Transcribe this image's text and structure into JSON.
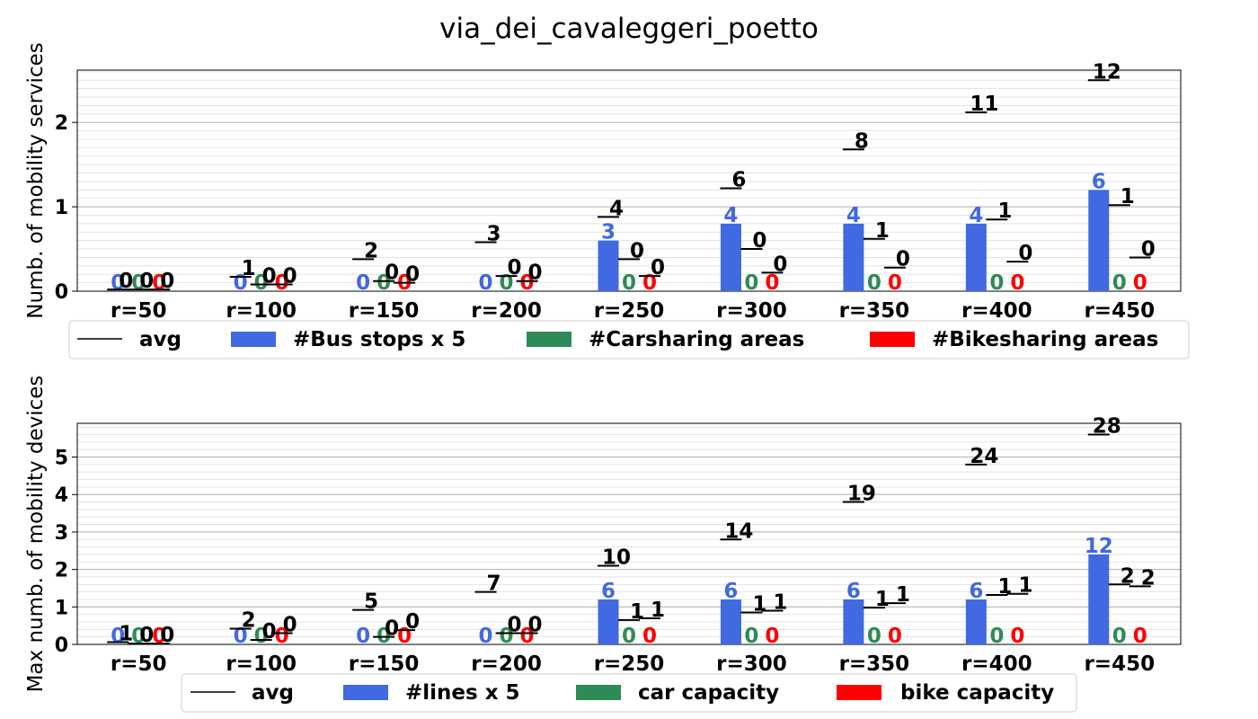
{
  "figure": {
    "title": "via_dei_cavaleggeri_poetto"
  },
  "colors": {
    "bus": "#4169e1",
    "car": "#2e8b57",
    "bike": "#ff0000",
    "avg": "#000000"
  },
  "chart_data": [
    {
      "type": "bar",
      "ylabel": "Numb. of mobility services",
      "ylim": [
        0,
        2.62
      ],
      "yticks": [
        0,
        1,
        2
      ],
      "grid": true,
      "legend_placement": "below",
      "categories": [
        "r=50",
        "r=100",
        "r=150",
        "r=200",
        "r=250",
        "r=300",
        "r=350",
        "r=400",
        "r=450"
      ],
      "series": [
        {
          "name": "#Bus stops x 5",
          "values": [
            0,
            0,
            0,
            0,
            0.6,
            0.8,
            0.8,
            0.8,
            1.2
          ],
          "labels": [
            "0",
            "0",
            "0",
            "0",
            "3",
            "4",
            "4",
            "4",
            "6"
          ]
        },
        {
          "name": "#Carsharing areas",
          "values": [
            0,
            0,
            0,
            0,
            0,
            0,
            0,
            0,
            0
          ],
          "labels": [
            "0",
            "0",
            "0",
            "0",
            "0",
            "0",
            "0",
            "0",
            "0"
          ]
        },
        {
          "name": "#Bikesharing areas",
          "values": [
            0,
            0,
            0,
            0,
            0,
            0,
            0,
            0,
            0
          ],
          "labels": [
            "0",
            "0",
            "0",
            "0",
            "0",
            "0",
            "0",
            "0",
            "0"
          ]
        }
      ],
      "averages": [
        {
          "name": "avg",
          "values": [
            0.02,
            0.17,
            0.38,
            0.58,
            0.88,
            1.22,
            1.68,
            2.12,
            2.5
          ],
          "labels": [
            "0",
            "1",
            "2",
            "3",
            "4",
            "6",
            "8",
            "11",
            "12"
          ]
        },
        {
          "name": "avg",
          "values": [
            0.02,
            0.08,
            0.12,
            0.18,
            0.38,
            0.5,
            0.62,
            0.85,
            1.02
          ],
          "labels": [
            "0",
            "0",
            "0",
            "0",
            "0",
            "0",
            "1",
            "1",
            "1"
          ]
        },
        {
          "name": "avg",
          "values": [
            0.02,
            0.08,
            0.1,
            0.12,
            0.18,
            0.22,
            0.28,
            0.35,
            0.4
          ],
          "labels": [
            "0",
            "0",
            "0",
            "0",
            "0",
            "0",
            "0",
            "0",
            "0"
          ]
        }
      ],
      "legend": [
        "avg",
        "#Bus stops x 5",
        "#Carsharing areas",
        "#Bikesharing areas"
      ]
    },
    {
      "type": "bar",
      "ylabel": "Max numb. of mobility devices",
      "ylim": [
        0,
        5.9
      ],
      "yticks": [
        0,
        1,
        2,
        3,
        4,
        5
      ],
      "grid": true,
      "legend_placement": "below",
      "categories": [
        "r=50",
        "r=100",
        "r=150",
        "r=200",
        "r=250",
        "r=300",
        "r=350",
        "r=400",
        "r=450"
      ],
      "series": [
        {
          "name": "#lines x 5",
          "values": [
            0,
            0,
            0,
            0,
            1.2,
            1.2,
            1.2,
            1.2,
            2.4
          ],
          "labels": [
            "0",
            "0",
            "0",
            "0",
            "6",
            "6",
            "6",
            "6",
            "12"
          ]
        },
        {
          "name": "car capacity",
          "values": [
            0,
            0,
            0,
            0,
            0,
            0,
            0,
            0,
            0
          ],
          "labels": [
            "0",
            "0",
            "0",
            "0",
            "0",
            "0",
            "0",
            "0",
            "0"
          ]
        },
        {
          "name": "bike capacity",
          "values": [
            0,
            0,
            0,
            0,
            0,
            0,
            0,
            0,
            0
          ],
          "labels": [
            "0",
            "0",
            "0",
            "0",
            "0",
            "0",
            "0",
            "0",
            "0"
          ]
        }
      ],
      "averages": [
        {
          "name": "avg",
          "values": [
            0.06,
            0.42,
            0.92,
            1.4,
            2.1,
            2.8,
            3.8,
            4.8,
            5.6
          ],
          "labels": [
            "1",
            "2",
            "5",
            "7",
            "10",
            "14",
            "19",
            "24",
            "28"
          ]
        },
        {
          "name": "avg",
          "values": [
            0.02,
            0.12,
            0.2,
            0.3,
            0.65,
            0.85,
            0.98,
            1.32,
            1.6
          ],
          "labels": [
            "0",
            "0",
            "0",
            "0",
            "1",
            "1",
            "1",
            "1",
            "2"
          ]
        },
        {
          "name": "avg",
          "values": [
            0.02,
            0.3,
            0.38,
            0.3,
            0.7,
            0.9,
            1.1,
            1.35,
            1.55
          ],
          "labels": [
            "0",
            "0",
            "0",
            "0",
            "1",
            "1",
            "1",
            "1",
            "2"
          ]
        }
      ],
      "legend": [
        "avg",
        "#lines x 5",
        "car capacity",
        "bike capacity"
      ]
    }
  ]
}
